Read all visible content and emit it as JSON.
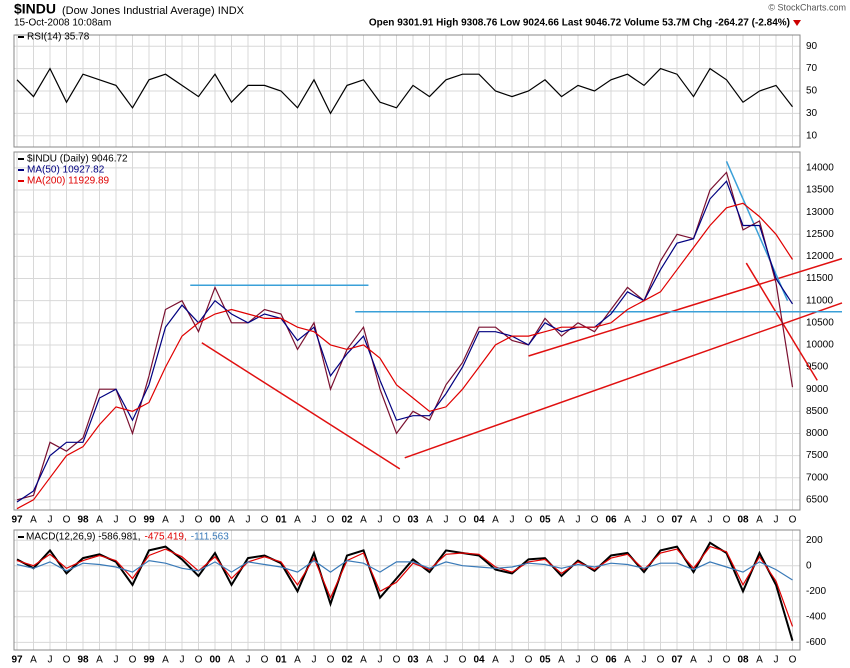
{
  "header": {
    "symbol": "$INDU",
    "name": "(Dow Jones Industrial Average) INDX",
    "date": "15-Oct-2008 10:08am",
    "quote": "Open 9301.91  High 9308.76  Low 9024.66  Last 9046.72  Volume 53.7M  Chg -264.27 (-2.84%)",
    "copyright": "© StockCharts.com"
  },
  "chart_data": [
    {
      "type": "line",
      "ylim": [
        0,
        100
      ],
      "yticks": [
        10,
        30,
        50,
        70,
        90
      ],
      "grid": true,
      "series": [
        {
          "name": "RSI(14) 35.78",
          "color": "#000000",
          "values": [
            60,
            45,
            70,
            40,
            65,
            60,
            55,
            35,
            60,
            65,
            55,
            45,
            65,
            40,
            55,
            55,
            50,
            35,
            60,
            30,
            55,
            60,
            40,
            35,
            55,
            45,
            60,
            65,
            65,
            50,
            45,
            50,
            60,
            45,
            55,
            50,
            60,
            65,
            55,
            70,
            65,
            45,
            70,
            60,
            40,
            50,
            55,
            36
          ]
        }
      ]
    },
    {
      "type": "line",
      "ylim": [
        6270,
        14360
      ],
      "yticks": [
        6500,
        7000,
        7500,
        8000,
        8500,
        9000,
        9500,
        10000,
        10500,
        11000,
        11500,
        12000,
        12500,
        13000,
        13500,
        14000
      ],
      "grid": true,
      "categories": [
        "97",
        "A",
        "J",
        "O",
        "98",
        "A",
        "J",
        "O",
        "99",
        "A",
        "J",
        "O",
        "00",
        "A",
        "J",
        "O",
        "01",
        "A",
        "J",
        "O",
        "02",
        "A",
        "J",
        "O",
        "03",
        "A",
        "J",
        "O",
        "04",
        "A",
        "J",
        "O",
        "05",
        "A",
        "J",
        "O",
        "06",
        "A",
        "J",
        "O",
        "07",
        "A",
        "J",
        "O",
        "08",
        "A",
        "J",
        "O"
      ],
      "series": [
        {
          "name": "$INDU (Daily) 9046.72",
          "color": "#7a1030",
          "values": [
            6500,
            6600,
            7800,
            7600,
            7900,
            9000,
            9000,
            8000,
            9300,
            10800,
            11000,
            10300,
            11300,
            10500,
            10500,
            10800,
            10700,
            9900,
            10500,
            9000,
            9900,
            10400,
            9000,
            8000,
            8500,
            8300,
            9100,
            9600,
            10400,
            10400,
            10100,
            10000,
            10600,
            10200,
            10500,
            10300,
            10800,
            11300,
            11000,
            11900,
            12500,
            12400,
            13500,
            13900,
            12600,
            12800,
            11400,
            9047
          ]
        },
        {
          "name": "MA(50) 10927.82",
          "color": "#000080",
          "values": [
            6450,
            6700,
            7500,
            7800,
            7800,
            8800,
            9000,
            8300,
            9100,
            10400,
            10900,
            10500,
            11000,
            10700,
            10500,
            10700,
            10600,
            10100,
            10400,
            9300,
            9800,
            10200,
            9200,
            8300,
            8400,
            8400,
            8900,
            9500,
            10300,
            10300,
            10200,
            10000,
            10500,
            10300,
            10400,
            10400,
            10700,
            11200,
            11000,
            11700,
            12300,
            12400,
            13300,
            13700,
            12700,
            12700,
            11500,
            10928
          ]
        },
        {
          "name": "MA(200) 11929.89",
          "color": "#e00000",
          "values": [
            6300,
            6500,
            7000,
            7500,
            7700,
            8200,
            8600,
            8500,
            8700,
            9500,
            10200,
            10500,
            10700,
            10800,
            10700,
            10600,
            10600,
            10400,
            10300,
            10000,
            9900,
            10000,
            9700,
            9100,
            8800,
            8500,
            8600,
            9000,
            9500,
            10000,
            10200,
            10200,
            10300,
            10400,
            10400,
            10400,
            10500,
            10800,
            11000,
            11200,
            11700,
            12200,
            12700,
            13100,
            13200,
            12900,
            12500,
            11930
          ]
        }
      ],
      "lines": [
        {
          "color": "#e01010",
          "x": [
            11.2,
            23.2
          ],
          "values": [
            10050,
            7200
          ]
        },
        {
          "color": "#e01010",
          "x": [
            23.5,
            50
          ],
          "values": [
            7450,
            10950
          ]
        },
        {
          "color": "#e01010",
          "x": [
            31,
            50
          ],
          "values": [
            9750,
            11950
          ]
        },
        {
          "color": "#e01010",
          "x": [
            44.2,
            48.5
          ],
          "values": [
            11850,
            9200
          ]
        },
        {
          "color": "#3aa0d8",
          "x": [
            43,
            46.7
          ],
          "values": [
            14150,
            11000
          ]
        },
        {
          "color": "#3aa0d8",
          "x": [
            10.5,
            21.3
          ],
          "values": [
            11350,
            11350
          ]
        },
        {
          "color": "#3aa0d8",
          "x": [
            20.5,
            50
          ],
          "values": [
            10750,
            10750
          ]
        }
      ]
    },
    {
      "type": "line",
      "ylim": [
        -660,
        280
      ],
      "yticks": [
        200,
        0,
        -200,
        -400,
        -600
      ],
      "grid": true,
      "categories": [
        "97",
        "A",
        "J",
        "O",
        "98",
        "A",
        "J",
        "O",
        "99",
        "A",
        "J",
        "O",
        "00",
        "A",
        "J",
        "O",
        "01",
        "A",
        "J",
        "O",
        "02",
        "A",
        "J",
        "O",
        "03",
        "A",
        "J",
        "O",
        "04",
        "A",
        "J",
        "O",
        "05",
        "A",
        "J",
        "O",
        "06",
        "A",
        "J",
        "O",
        "07",
        "A",
        "J",
        "O",
        "08",
        "A",
        "J",
        "O"
      ],
      "series": [
        {
          "name": "MACD(12,26,9) -586.981,",
          "color": "#000000",
          "values": [
            50,
            -20,
            120,
            -60,
            60,
            90,
            30,
            -150,
            120,
            150,
            50,
            -80,
            100,
            -150,
            60,
            80,
            20,
            -200,
            100,
            -300,
            80,
            120,
            -250,
            -100,
            50,
            -50,
            120,
            100,
            80,
            -30,
            -60,
            50,
            60,
            -80,
            40,
            -40,
            80,
            100,
            -50,
            120,
            150,
            -50,
            180,
            100,
            -200,
            100,
            -150,
            -587
          ]
        },
        {
          "name": "-475.419,",
          "color": "#e00000",
          "values": [
            40,
            0,
            90,
            -20,
            40,
            80,
            40,
            -100,
            80,
            130,
            70,
            -40,
            70,
            -100,
            30,
            70,
            30,
            -150,
            60,
            -250,
            40,
            100,
            -200,
            -130,
            20,
            -30,
            90,
            100,
            90,
            -10,
            -50,
            30,
            50,
            -60,
            30,
            -30,
            60,
            90,
            -30,
            100,
            130,
            -20,
            150,
            110,
            -150,
            70,
            -120,
            -475
          ]
        },
        {
          "name": "-111.563",
          "color": "#3a7ab8",
          "values": [
            10,
            -20,
            30,
            -40,
            20,
            10,
            -10,
            -50,
            40,
            20,
            -20,
            -40,
            30,
            -50,
            30,
            10,
            -10,
            -50,
            40,
            -50,
            40,
            20,
            -50,
            30,
            30,
            -20,
            30,
            0,
            -10,
            -20,
            -10,
            20,
            10,
            -20,
            10,
            -10,
            20,
            10,
            -20,
            20,
            20,
            -30,
            30,
            -10,
            -50,
            30,
            -30,
            -112
          ]
        }
      ]
    }
  ]
}
